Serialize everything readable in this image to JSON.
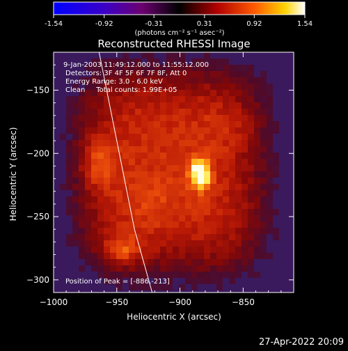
{
  "colorbar": {
    "tick_labels": [
      "-1.54",
      "-0.92",
      "-0.31",
      "0.31",
      "0.92",
      "1.54"
    ],
    "tick_values": [
      -1.54,
      -0.92,
      -0.31,
      0.31,
      0.92,
      1.54
    ],
    "range": [
      -1.54,
      1.54
    ],
    "unit_label": "(photons cm⁻² s⁻¹ asec⁻²)"
  },
  "chart_data": {
    "type": "heatmap",
    "title": "Reconstructed RHESSI Image",
    "xlabel": "Heliocentric X (arcsec)",
    "ylabel": "Heliocentric Y (arcsec)",
    "xlim": [
      -1000,
      -810
    ],
    "ylim": [
      -310,
      -120
    ],
    "x_ticks": [
      -1000,
      -950,
      -900,
      -850
    ],
    "x_tick_labels": [
      "−1000",
      "−950",
      "−900",
      "−850"
    ],
    "y_ticks": [
      -150,
      -200,
      -250,
      -300
    ],
    "y_tick_labels": [
      "−150",
      "−200",
      "−250",
      "−300"
    ],
    "annotations": [
      "9-Jan-2003 11:49:12.000 to 11:55:12.000",
      "Detectors: 3F 4F 5F 6F 7F 8F, Att 0",
      "Energy Range: 3.0 - 6.0 keV",
      "Clean     Total counts: 1.99E+05"
    ],
    "peak_label": "Position of Peak = [-886,-213]",
    "peak": [
      -886,
      -213
    ],
    "sources": [
      {
        "x": -886,
        "y": -213,
        "value": 1.54
      },
      {
        "x": -955,
        "y": -210,
        "value": 0.9
      },
      {
        "x": -948,
        "y": -275,
        "value": 0.85
      }
    ],
    "limb_curve": [
      [
        -964,
        -120
      ],
      [
        -948,
        -200
      ],
      [
        -936,
        -260
      ],
      [
        -922,
        -310
      ]
    ],
    "grid": false
  },
  "footer_timestamp": "27-Apr-2022 20:09"
}
